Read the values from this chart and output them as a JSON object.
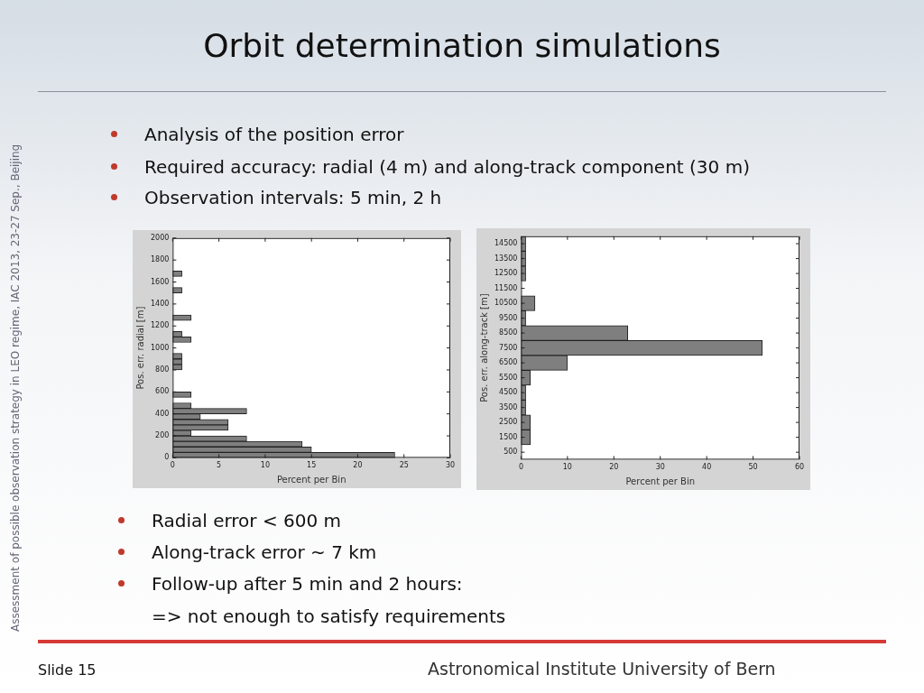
{
  "chart_data": [
    {
      "type": "other",
      "title": "Orbit determination simulations",
      "annotations": [
        "Analysis of the position error",
        "Required accuracy: radial (4 m) and along-track component (30 m)",
        "Observation intervals: 5 min, 2 h",
        "Radial error < 600 m",
        "Along-track error ~ 7 km",
        "Follow-up after 5 min and 2 hours:",
        "=> not enough to satisfy requirements",
        "Assessment of possible observation strategy in LEO regime, IAC 2013, 23-27 Sep., Beijing",
        "Slide 15",
        "Astronomical Institute University of Bern"
      ]
    },
    {
      "type": "histogram",
      "orientation": "horizontal",
      "color": "#7f7f7f",
      "xlabel": "Percent per Bin",
      "ylabel": "Pos. err. radial [m]",
      "bins": [
        0,
        50,
        100,
        150,
        200,
        250,
        300,
        350,
        400,
        450,
        500,
        550,
        600,
        650,
        700,
        750,
        800,
        850,
        900,
        950,
        1000,
        1050,
        1100,
        1150,
        1200,
        1250,
        1300,
        1350,
        1400,
        1450,
        1500,
        1550,
        1600,
        1650,
        1700
      ],
      "values": [
        24,
        15,
        14,
        8,
        2,
        6,
        6,
        3,
        8,
        2,
        0,
        2,
        0,
        0,
        0,
        0,
        1,
        1,
        1,
        0,
        0,
        2,
        1,
        0,
        0,
        2,
        0,
        0,
        0,
        0,
        1,
        0,
        0,
        1
      ],
      "xlim": [
        0,
        30
      ],
      "xticks": [
        0,
        5,
        10,
        15,
        20,
        25,
        30
      ],
      "ylim": [
        0,
        2000
      ],
      "yticks": [
        0,
        200,
        400,
        600,
        800,
        1000,
        1200,
        1400,
        1600,
        1800,
        2000
      ]
    },
    {
      "type": "histogram",
      "orientation": "horizontal",
      "color": "#7f7f7f",
      "xlabel": "Percent per Bin",
      "ylabel": "Pos. err. along-track [m]",
      "bins": [
        1000,
        2000,
        3000,
        4000,
        5000,
        6000,
        7000,
        8000,
        9000,
        10000,
        11000,
        12000,
        13000,
        14000,
        15000
      ],
      "values": [
        2,
        2,
        1,
        1,
        2,
        10,
        52,
        23,
        1,
        3,
        0,
        1,
        1,
        1
      ],
      "xlim": [
        0,
        60
      ],
      "xticks": [
        0,
        10,
        20,
        30,
        40,
        50,
        60
      ],
      "ylim": [
        0,
        15000
      ],
      "yticks": [
        500,
        1500,
        2500,
        3500,
        4500,
        5500,
        6500,
        7500,
        8500,
        9500,
        10500,
        11500,
        12500,
        13500,
        14500
      ]
    }
  ]
}
